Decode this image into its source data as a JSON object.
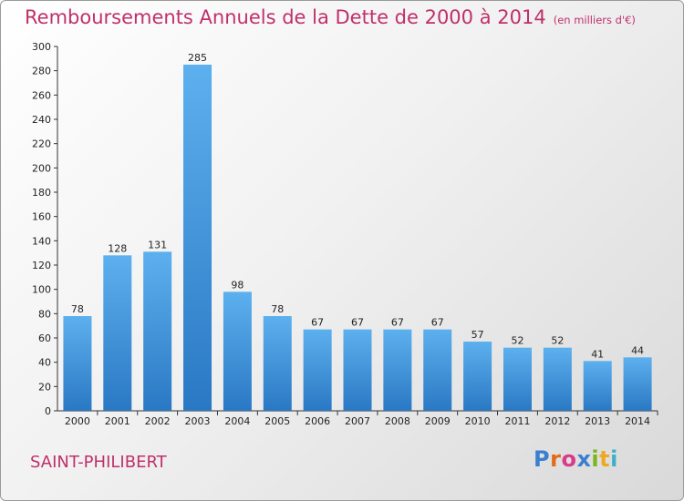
{
  "title": "Remboursements Annuels de la Dette de 2000 à 2014",
  "unit_note": "(en milliers d'€)",
  "commune": "SAINT-PHILIBERT",
  "logo": {
    "letters": [
      "P",
      "r",
      "o",
      "x",
      "i",
      "t",
      "i"
    ],
    "colors": [
      "#3b7fd0",
      "#e36a1a",
      "#d93a8a",
      "#3b7fd0",
      "#7ab51d",
      "#f0a820",
      "#3fb0c8"
    ]
  },
  "chart_data": {
    "type": "bar",
    "categories": [
      "2000",
      "2001",
      "2002",
      "2003",
      "2004",
      "2005",
      "2006",
      "2007",
      "2008",
      "2009",
      "2010",
      "2011",
      "2012",
      "2013",
      "2014"
    ],
    "values": [
      78,
      128,
      131,
      285,
      98,
      78,
      67,
      67,
      67,
      67,
      57,
      52,
      52,
      41,
      44
    ],
    "ylim": [
      0,
      300
    ],
    "yticks": [
      0,
      20,
      40,
      60,
      80,
      100,
      120,
      140,
      160,
      180,
      200,
      220,
      240,
      260,
      280,
      300
    ],
    "grid": false,
    "bar_color": "#4a9de0"
  }
}
